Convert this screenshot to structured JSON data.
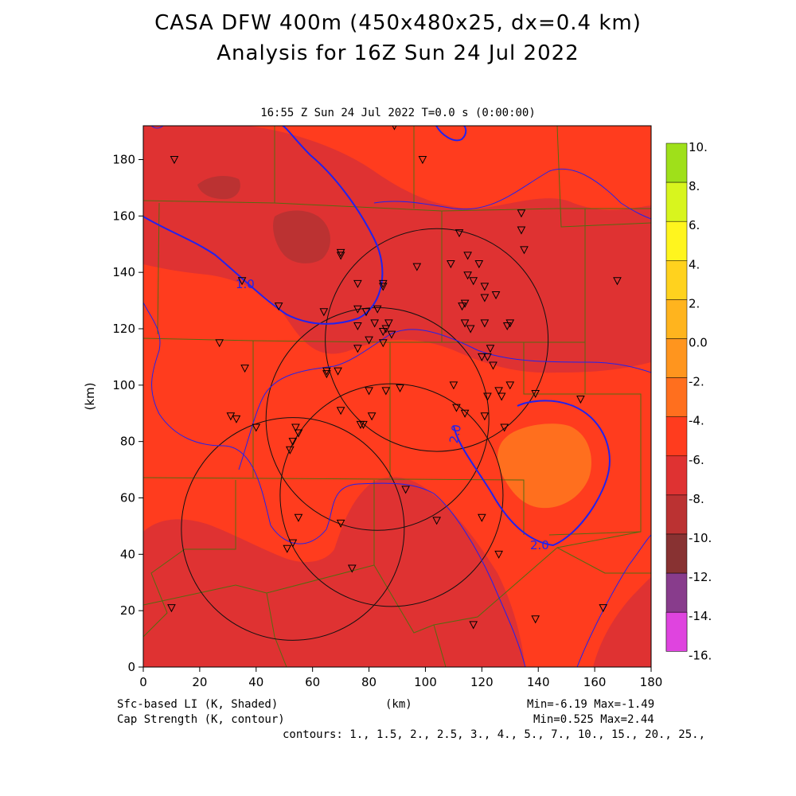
{
  "title_line1": "CASA DFW 400m (450x480x25, dx=0.4 km)",
  "title_line2": "Analysis for 16Z Sun 24 Jul 2022",
  "time_label": "16:55 Z Sun 24 Jul 2022    T=0.0 s (0:00:00)",
  "x_axis": {
    "label": "(km)",
    "ticks": [
      "0",
      "20",
      "40",
      "60",
      "80",
      "100",
      "120",
      "140",
      "160",
      "180"
    ]
  },
  "y_axis": {
    "label": "(km)",
    "ticks": [
      "0",
      "20",
      "40",
      "60",
      "80",
      "100",
      "120",
      "140",
      "160",
      "180"
    ]
  },
  "colorbar": {
    "labels": [
      "10.",
      "8.",
      "6.",
      "4.",
      "2.",
      "0.0",
      "-2.",
      "-4.",
      "-6.",
      "-8.",
      "-10.",
      "-12.",
      "-14.",
      "-16."
    ],
    "colors": [
      "#9fe01a",
      "#d8f51e",
      "#fff51e",
      "#ffd21e",
      "#ffb41e",
      "#ff951e",
      "#ff6f1e",
      "#ff3c1e",
      "#df3232",
      "#bb3232",
      "#883232",
      "#883c8c",
      "#bb3cbb",
      "#df44df"
    ]
  },
  "shading_colors": {
    "lt_minus6": "#bb3232",
    "minus6_to_minus4": "#df3232",
    "minus4_to_minus2": "#ff3c1e",
    "minus2_to_0": "#ff6f1e"
  },
  "contour_labels": [
    "1.0",
    "2.0",
    "2.0"
  ],
  "footer": {
    "left1": "Sfc-based LI (K, Shaded)",
    "left2": "Cap Strength (K, contour)",
    "center": "(km)",
    "right1": "Min=-6.19 Max=-1.49",
    "right2": "Min=0.525 Max=2.44",
    "right3": "contours: 1., 1.5, 2., 2.5, 3., 4., 5., 7., 10., 15., 20., 25.,"
  },
  "radar_ranges": [
    {
      "cx_km": 104,
      "cy_km": 116,
      "r_km": 39.5
    },
    {
      "cx_km": 83,
      "cy_km": 88,
      "r_km": 39.5
    },
    {
      "cx_km": 88,
      "cy_km": 61,
      "r_km": 39.5
    },
    {
      "cx_km": 53,
      "cy_km": 49,
      "r_km": 39.5
    }
  ],
  "stations_km": [
    [
      11,
      180
    ],
    [
      89,
      192
    ],
    [
      99,
      180
    ],
    [
      48,
      128
    ],
    [
      27,
      115
    ],
    [
      36,
      106
    ],
    [
      31,
      89
    ],
    [
      33,
      88
    ],
    [
      40,
      85
    ],
    [
      35,
      137
    ],
    [
      70,
      147
    ],
    [
      70,
      146
    ],
    [
      64,
      126
    ],
    [
      65,
      104
    ],
    [
      65,
      105
    ],
    [
      69,
      105
    ],
    [
      70,
      91
    ],
    [
      54,
      85
    ],
    [
      53,
      80
    ],
    [
      55,
      83
    ],
    [
      52,
      77
    ],
    [
      55,
      53
    ],
    [
      51,
      42
    ],
    [
      53,
      44
    ],
    [
      77,
      86
    ],
    [
      78,
      86
    ],
    [
      80,
      98
    ],
    [
      81,
      89
    ],
    [
      86,
      98
    ],
    [
      91,
      99
    ],
    [
      93,
      63
    ],
    [
      70,
      51
    ],
    [
      74,
      35
    ],
    [
      10,
      21
    ],
    [
      76,
      136
    ],
    [
      85,
      136
    ],
    [
      85,
      135
    ],
    [
      76,
      127
    ],
    [
      79,
      126
    ],
    [
      83,
      127
    ],
    [
      82,
      122
    ],
    [
      76,
      121
    ],
    [
      76,
      113
    ],
    [
      80,
      116
    ],
    [
      85,
      119
    ],
    [
      85,
      115
    ],
    [
      86,
      120
    ],
    [
      87,
      122
    ],
    [
      88,
      118
    ],
    [
      97,
      142
    ],
    [
      109,
      143
    ],
    [
      112,
      154
    ],
    [
      115,
      146
    ],
    [
      115,
      139
    ],
    [
      117,
      137
    ],
    [
      119,
      143
    ],
    [
      121,
      135
    ],
    [
      121,
      131
    ],
    [
      125,
      132
    ],
    [
      113,
      128
    ],
    [
      114,
      129
    ],
    [
      114,
      122
    ],
    [
      116,
      120
    ],
    [
      121,
      122
    ],
    [
      120,
      110
    ],
    [
      122,
      110
    ],
    [
      123,
      113
    ],
    [
      124,
      107
    ],
    [
      126,
      98
    ],
    [
      122,
      96
    ],
    [
      130,
      100
    ],
    [
      134,
      161
    ],
    [
      134,
      155
    ],
    [
      135,
      148
    ],
    [
      129,
      121
    ],
    [
      130,
      122
    ],
    [
      110,
      100
    ],
    [
      111,
      92
    ],
    [
      114,
      90
    ],
    [
      121,
      89
    ],
    [
      128,
      85
    ],
    [
      127,
      96
    ],
    [
      139,
      97
    ],
    [
      155,
      95
    ],
    [
      168,
      137
    ],
    [
      120,
      53
    ],
    [
      126,
      40
    ],
    [
      117,
      15
    ],
    [
      139,
      17
    ],
    [
      163,
      21
    ],
    [
      104,
      52
    ]
  ]
}
